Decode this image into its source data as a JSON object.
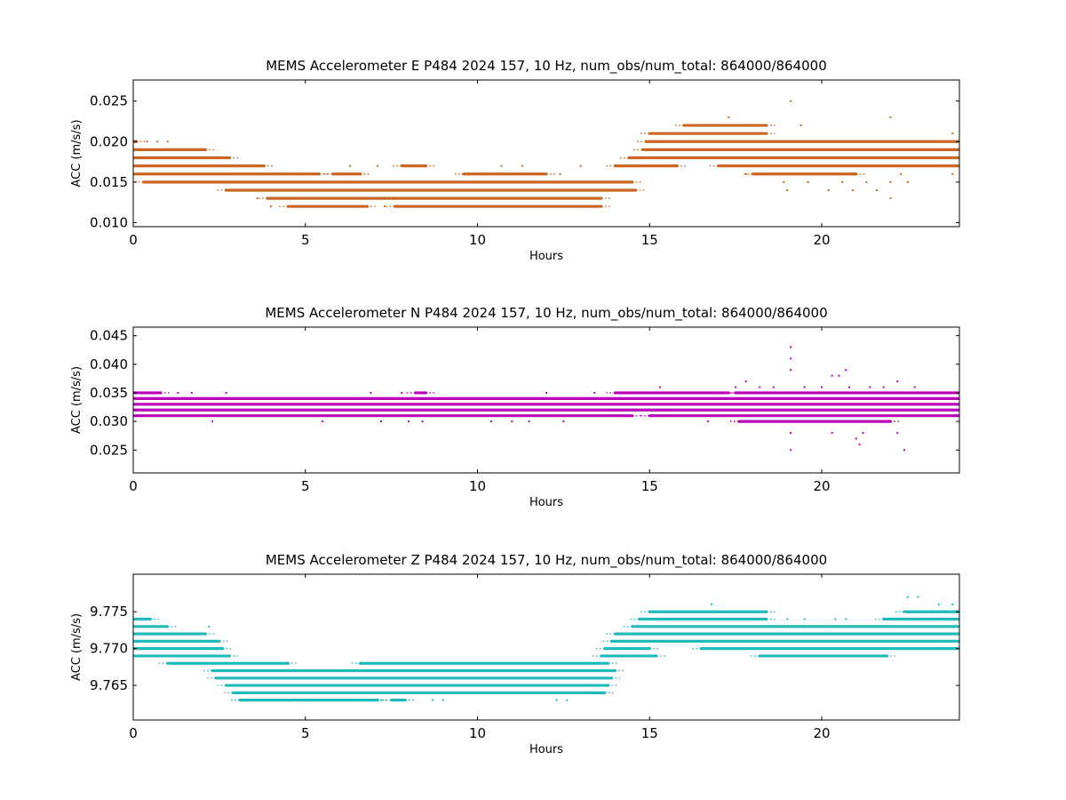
{
  "chart_data": [
    {
      "type": "scatter",
      "title": "MEMS Accelerometer E P484 2024 157, 10 Hz, num_obs/num_total: 864000/864000",
      "xlabel": "Hours",
      "ylabel": "ACC (m/s/s)",
      "xlim": [
        0,
        24
      ],
      "ylim": [
        0.0095,
        0.0276
      ],
      "xticks": [
        0,
        5,
        10,
        15,
        20
      ],
      "yticks": [
        0.01,
        0.015,
        0.02,
        0.025
      ],
      "ytick_labels": [
        "0.010",
        "0.015",
        "0.020",
        "0.025"
      ],
      "color": "#cc6622",
      "grid": false,
      "bands": [
        {
          "y": 0.02,
          "segments": [
            [
              0.0,
              0.1
            ]
          ]
        },
        {
          "y": 0.019,
          "segments": [
            [
              0.0,
              2.1
            ]
          ]
        },
        {
          "y": 0.018,
          "segments": [
            [
              0.0,
              2.8
            ]
          ]
        },
        {
          "y": 0.017,
          "segments": [
            [
              0.0,
              3.8
            ],
            [
              7.8,
              8.5
            ]
          ]
        },
        {
          "y": 0.016,
          "segments": [
            [
              0.0,
              5.4
            ],
            [
              5.8,
              6.6
            ],
            [
              9.6,
              12.0
            ]
          ]
        },
        {
          "y": 0.015,
          "segments": [
            [
              0.3,
              14.5
            ]
          ]
        },
        {
          "y": 0.014,
          "segments": [
            [
              2.7,
              14.6
            ]
          ]
        },
        {
          "y": 0.013,
          "segments": [
            [
              3.9,
              13.6
            ]
          ]
        },
        {
          "y": 0.012,
          "segments": [
            [
              4.5,
              6.8
            ],
            [
              7.6,
              13.6
            ]
          ]
        },
        {
          "y": 0.017,
          "segments": [
            [
              14.0,
              15.8
            ],
            [
              17.0,
              24.0
            ]
          ]
        },
        {
          "y": 0.018,
          "segments": [
            [
              14.4,
              24.0
            ]
          ]
        },
        {
          "y": 0.019,
          "segments": [
            [
              14.8,
              24.0
            ]
          ]
        },
        {
          "y": 0.02,
          "segments": [
            [
              14.9,
              24.0
            ]
          ]
        },
        {
          "y": 0.021,
          "segments": [
            [
              15.0,
              18.4
            ]
          ]
        },
        {
          "y": 0.022,
          "segments": [
            [
              16.0,
              18.4
            ]
          ]
        },
        {
          "y": 0.016,
          "segments": [
            [
              18.0,
              21.0
            ]
          ]
        }
      ],
      "outliers": [
        [
          0.4,
          0.02
        ],
        [
          0.7,
          0.02
        ],
        [
          1.0,
          0.02
        ],
        [
          0.5,
          0.015
        ],
        [
          1.4,
          0.015
        ],
        [
          2.1,
          0.015
        ],
        [
          3.6,
          0.013
        ],
        [
          4.0,
          0.012
        ],
        [
          6.3,
          0.017
        ],
        [
          7.1,
          0.017
        ],
        [
          7.3,
          0.012
        ],
        [
          10.7,
          0.017
        ],
        [
          11.3,
          0.017
        ],
        [
          12.0,
          0.016
        ],
        [
          12.4,
          0.016
        ],
        [
          13.0,
          0.017
        ],
        [
          17.3,
          0.023
        ],
        [
          17.8,
          0.016
        ],
        [
          19.1,
          0.025
        ],
        [
          18.9,
          0.015
        ],
        [
          19.0,
          0.014
        ],
        [
          19.4,
          0.022
        ],
        [
          19.6,
          0.015
        ],
        [
          20.2,
          0.014
        ],
        [
          20.6,
          0.015
        ],
        [
          20.9,
          0.014
        ],
        [
          21.3,
          0.015
        ],
        [
          21.6,
          0.014
        ],
        [
          22.0,
          0.023
        ],
        [
          22.0,
          0.013
        ],
        [
          22.0,
          0.015
        ],
        [
          22.3,
          0.016
        ],
        [
          22.5,
          0.015
        ],
        [
          23.8,
          0.021
        ],
        [
          23.8,
          0.016
        ]
      ]
    },
    {
      "type": "scatter",
      "title": "MEMS Accelerometer N P484 2024 157, 10 Hz, num_obs/num_total: 864000/864000",
      "xlabel": "Hours",
      "ylabel": "ACC (m/s/s)",
      "xlim": [
        0,
        24
      ],
      "ylim": [
        0.021,
        0.0465
      ],
      "xticks": [
        0,
        5,
        10,
        15,
        20
      ],
      "yticks": [
        0.025,
        0.03,
        0.035,
        0.04,
        0.045
      ],
      "ytick_labels": [
        "0.025",
        "0.030",
        "0.035",
        "0.040",
        "0.045"
      ],
      "color": "#bb00bb",
      "grid": false,
      "bands": [
        {
          "y": 0.034,
          "segments": [
            [
              0.0,
              24.0
            ]
          ]
        },
        {
          "y": 0.033,
          "segments": [
            [
              0.0,
              24.0
            ]
          ]
        },
        {
          "y": 0.032,
          "segments": [
            [
              0.0,
              24.0
            ]
          ]
        },
        {
          "y": 0.031,
          "segments": [
            [
              0.0,
              14.5
            ],
            [
              15.0,
              24.0
            ]
          ]
        },
        {
          "y": 0.035,
          "segments": [
            [
              0.0,
              0.8
            ],
            [
              8.2,
              8.5
            ],
            [
              14.0,
              17.3
            ],
            [
              17.5,
              24.0
            ]
          ]
        },
        {
          "y": 0.03,
          "segments": [
            [
              17.6,
              22.0
            ]
          ]
        }
      ],
      "outliers": [
        [
          1.3,
          0.035
        ],
        [
          1.7,
          0.035
        ],
        [
          2.7,
          0.035
        ],
        [
          2.3,
          0.03
        ],
        [
          5.5,
          0.03
        ],
        [
          6.9,
          0.035
        ],
        [
          7.2,
          0.03
        ],
        [
          7.8,
          0.035
        ],
        [
          8.0,
          0.03
        ],
        [
          8.4,
          0.03
        ],
        [
          10.4,
          0.03
        ],
        [
          11.0,
          0.03
        ],
        [
          11.5,
          0.03
        ],
        [
          12.0,
          0.035
        ],
        [
          12.5,
          0.03
        ],
        [
          13.4,
          0.035
        ],
        [
          15.3,
          0.036
        ],
        [
          16.7,
          0.03
        ],
        [
          17.5,
          0.036
        ],
        [
          17.8,
          0.037
        ],
        [
          18.2,
          0.036
        ],
        [
          18.6,
          0.036
        ],
        [
          19.1,
          0.043
        ],
        [
          19.1,
          0.041
        ],
        [
          19.1,
          0.039
        ],
        [
          19.1,
          0.028
        ],
        [
          19.1,
          0.025
        ],
        [
          19.5,
          0.036
        ],
        [
          20.0,
          0.036
        ],
        [
          20.3,
          0.038
        ],
        [
          20.5,
          0.038
        ],
        [
          20.7,
          0.039
        ],
        [
          20.3,
          0.028
        ],
        [
          20.8,
          0.036
        ],
        [
          21.0,
          0.027
        ],
        [
          21.1,
          0.026
        ],
        [
          21.2,
          0.028
        ],
        [
          21.4,
          0.036
        ],
        [
          21.8,
          0.036
        ],
        [
          22.2,
          0.037
        ],
        [
          22.2,
          0.028
        ],
        [
          22.4,
          0.025
        ],
        [
          22.7,
          0.036
        ],
        [
          23.1,
          0.035
        ],
        [
          23.5,
          0.031
        ]
      ]
    },
    {
      "type": "scatter",
      "title": "MEMS Accelerometer Z P484 2024 157, 10 Hz, num_obs/num_total: 864000/864000",
      "xlabel": "Hours",
      "ylabel": "ACC (m/s/s)",
      "xlim": [
        0,
        24
      ],
      "ylim": [
        9.7603,
        9.7801
      ],
      "xticks": [
        0,
        5,
        10,
        15,
        20
      ],
      "yticks": [
        9.765,
        9.77,
        9.775
      ],
      "ytick_labels": [
        "9.765",
        "9.770",
        "9.775"
      ],
      "color": "#22bbbb",
      "grid": false,
      "bands": [
        {
          "y": 9.774,
          "segments": [
            [
              0.0,
              0.5
            ]
          ]
        },
        {
          "y": 9.773,
          "segments": [
            [
              0.0,
              1.0
            ]
          ]
        },
        {
          "y": 9.772,
          "segments": [
            [
              0.0,
              2.1
            ]
          ]
        },
        {
          "y": 9.771,
          "segments": [
            [
              0.0,
              2.5
            ]
          ]
        },
        {
          "y": 9.77,
          "segments": [
            [
              0.0,
              2.6
            ]
          ]
        },
        {
          "y": 9.769,
          "segments": [
            [
              0.0,
              2.8
            ]
          ]
        },
        {
          "y": 9.768,
          "segments": [
            [
              1.0,
              4.5
            ],
            [
              6.6,
              13.8
            ]
          ]
        },
        {
          "y": 9.767,
          "segments": [
            [
              2.3,
              14.0
            ]
          ]
        },
        {
          "y": 9.766,
          "segments": [
            [
              2.4,
              13.9
            ]
          ]
        },
        {
          "y": 9.765,
          "segments": [
            [
              2.7,
              13.8
            ]
          ]
        },
        {
          "y": 9.764,
          "segments": [
            [
              2.9,
              13.7
            ]
          ]
        },
        {
          "y": 9.763,
          "segments": [
            [
              3.1,
              4.5
            ],
            [
              4.5,
              7.1
            ],
            [
              7.5,
              7.9
            ]
          ]
        },
        {
          "y": 9.769,
          "segments": [
            [
              13.6,
              15.2
            ],
            [
              18.2,
              21.9
            ]
          ]
        },
        {
          "y": 9.77,
          "segments": [
            [
              13.7,
              15.0
            ],
            [
              16.5,
              24.0
            ]
          ]
        },
        {
          "y": 9.771,
          "segments": [
            [
              13.9,
              24.0
            ]
          ]
        },
        {
          "y": 9.772,
          "segments": [
            [
              14.0,
              24.0
            ]
          ]
        },
        {
          "y": 9.773,
          "segments": [
            [
              14.5,
              24.0
            ]
          ]
        },
        {
          "y": 9.774,
          "segments": [
            [
              14.7,
              18.4
            ],
            [
              21.8,
              24.0
            ]
          ]
        },
        {
          "y": 9.775,
          "segments": [
            [
              15.0,
              18.4
            ],
            [
              22.4,
              24.0
            ]
          ]
        }
      ],
      "outliers": [
        [
          2.2,
          9.773
        ],
        [
          3.6,
          9.768
        ],
        [
          4.0,
          9.763
        ],
        [
          7.2,
          9.763
        ],
        [
          8.7,
          9.763
        ],
        [
          9.0,
          9.763
        ],
        [
          12.3,
          9.763
        ],
        [
          12.6,
          9.763
        ],
        [
          15.3,
          9.775
        ],
        [
          16.8,
          9.776
        ],
        [
          18.0,
          9.775
        ],
        [
          19.0,
          9.774
        ],
        [
          19.5,
          9.774
        ],
        [
          20.4,
          9.774
        ],
        [
          20.7,
          9.774
        ],
        [
          18.6,
          9.769
        ],
        [
          22.5,
          9.777
        ],
        [
          22.8,
          9.777
        ],
        [
          23.4,
          9.776
        ],
        [
          23.8,
          9.776
        ]
      ]
    }
  ]
}
